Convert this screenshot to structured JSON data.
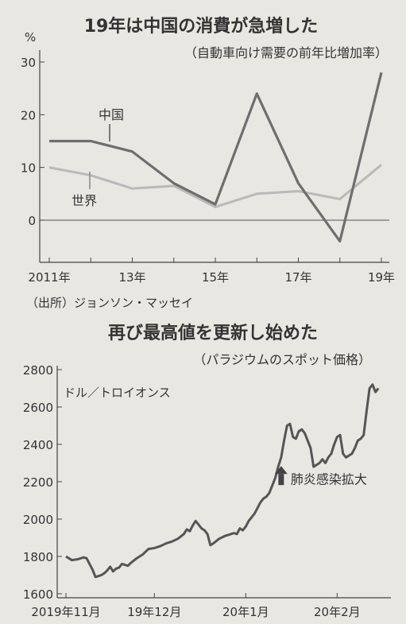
{
  "chart_data": [
    {
      "type": "line",
      "title": "19年は中国の消費が急増した",
      "subtitle": "（自動車向け需要の前年比増加率）",
      "yunit": "%",
      "ylim": [
        -8,
        30
      ],
      "yticks": [
        0,
        10,
        20,
        30
      ],
      "x": [
        2011,
        2012,
        2013,
        2014,
        2015,
        2016,
        2017,
        2018,
        2019
      ],
      "xticks": [
        {
          "x": 2011,
          "label": "2011年"
        },
        {
          "x": 2013,
          "label": "13年"
        },
        {
          "x": 2015,
          "label": "15年"
        },
        {
          "x": 2017,
          "label": "17年"
        },
        {
          "x": 2019,
          "label": "19年"
        }
      ],
      "series": [
        {
          "name": "中国",
          "color": "#6e6e6e",
          "values": [
            15,
            15,
            13,
            7,
            3,
            24,
            7,
            -4,
            28
          ]
        },
        {
          "name": "世界",
          "color": "#b9b9b9",
          "values": [
            10,
            8.5,
            6,
            6.5,
            2.5,
            5,
            5.5,
            4,
            10.5
          ]
        }
      ],
      "source": "（出所）ジョンソン・マッセイ"
    },
    {
      "type": "line",
      "title": "再び最高値を更新し始めた",
      "subtitle": "（パラジウムのスポット価格）",
      "yunit": "ドル／トロイオンス",
      "ylim": [
        1600,
        2800
      ],
      "yticks": [
        1600,
        1800,
        2000,
        2200,
        2400,
        2600,
        2800
      ],
      "xlim": [
        0,
        107
      ],
      "xticks": [
        {
          "x": 0,
          "label": "2019年11月"
        },
        {
          "x": 30,
          "label": "19年12月"
        },
        {
          "x": 61,
          "label": "20年1月"
        },
        {
          "x": 92,
          "label": "20年2月"
        }
      ],
      "series": [
        {
          "name": "",
          "color": "#555555",
          "x": [
            0,
            2,
            4,
            6,
            7,
            8,
            9,
            10,
            11,
            12,
            13,
            14,
            15,
            16,
            17,
            18,
            19,
            20,
            21,
            22,
            24,
            26,
            28,
            30,
            32,
            34,
            36,
            38,
            40,
            41,
            42,
            43,
            44,
            45,
            46,
            47,
            48,
            49,
            50,
            52,
            54,
            56,
            57,
            58,
            59,
            60,
            61,
            62,
            63,
            64,
            65,
            66,
            67,
            68,
            69,
            70,
            71,
            72,
            73,
            74,
            75,
            76,
            77,
            78,
            79,
            80,
            81,
            82,
            83,
            84,
            85,
            86,
            87,
            88,
            89,
            90,
            91,
            92,
            93,
            94,
            95,
            96,
            97,
            98,
            99,
            100,
            101,
            102,
            103,
            104,
            105,
            106
          ],
          "values": [
            1800,
            1780,
            1785,
            1795,
            1790,
            1760,
            1730,
            1690,
            1695,
            1700,
            1710,
            1725,
            1745,
            1720,
            1735,
            1740,
            1760,
            1755,
            1750,
            1765,
            1790,
            1810,
            1840,
            1845,
            1855,
            1870,
            1880,
            1895,
            1920,
            1945,
            1935,
            1965,
            1990,
            1970,
            1950,
            1940,
            1920,
            1860,
            1870,
            1895,
            1910,
            1920,
            1925,
            1920,
            1950,
            1940,
            1960,
            1990,
            2010,
            2030,
            2060,
            2090,
            2110,
            2120,
            2140,
            2180,
            2220,
            2280,
            2330,
            2420,
            2500,
            2510,
            2440,
            2430,
            2470,
            2480,
            2460,
            2420,
            2380,
            2280,
            2290,
            2300,
            2320,
            2300,
            2330,
            2350,
            2400,
            2440,
            2450,
            2350,
            2330,
            2340,
            2350,
            2380,
            2420,
            2430,
            2450,
            2580,
            2700,
            2720,
            2680,
            2700
          ]
        }
      ],
      "annotation": {
        "text": "肺炎感染拡大",
        "x": 73,
        "y": 2250
      }
    }
  ]
}
